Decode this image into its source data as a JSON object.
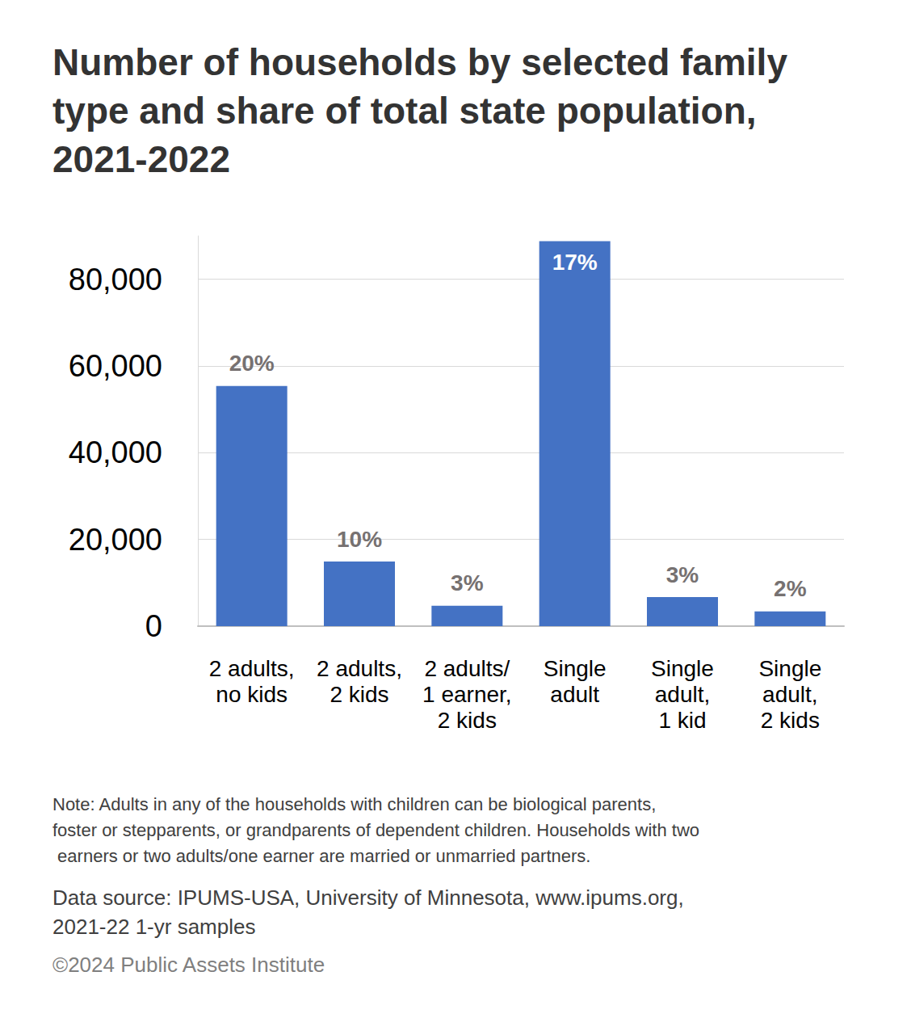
{
  "chart_data": {
    "type": "bar",
    "title": "Number of households by selected family type and share of total state population, 2021-2022",
    "categories": [
      "2 adults,\nno kids",
      "2 adults,\n2 kids",
      "2 adults/\n1 earner,\n2 kids",
      "Single\nadult",
      "Single\nadult,\n1 kid",
      "Single\nadult,\n2 kids"
    ],
    "values": [
      55400,
      14900,
      4700,
      88800,
      6700,
      3400
    ],
    "share_labels": [
      "20%",
      "10%",
      "3%",
      "17%",
      "3%",
      "2%"
    ],
    "color": "#4472c4",
    "ylim": [
      0,
      90000
    ],
    "yticks": [
      0,
      {
        "value": 20000,
        "label": "20,000"
      },
      {
        "value": 40000,
        "label": "40,000"
      },
      {
        "value": 60000,
        "label": "60,000"
      },
      {
        "value": 80000,
        "label": "80,000"
      }
    ],
    "grid": true,
    "note": "Note: Adults in any of the households with children can be biological parents, foster or stepparents, or grandparents of dependent children. Households with two earners or two adults/one earner are married or unmarried partners.",
    "source": "Data source: IPUMS-USA, University of Minnesota, www.ipums.org, 2021-22 1-yr samples",
    "copyright": "©2024 Public Assets Institute"
  }
}
